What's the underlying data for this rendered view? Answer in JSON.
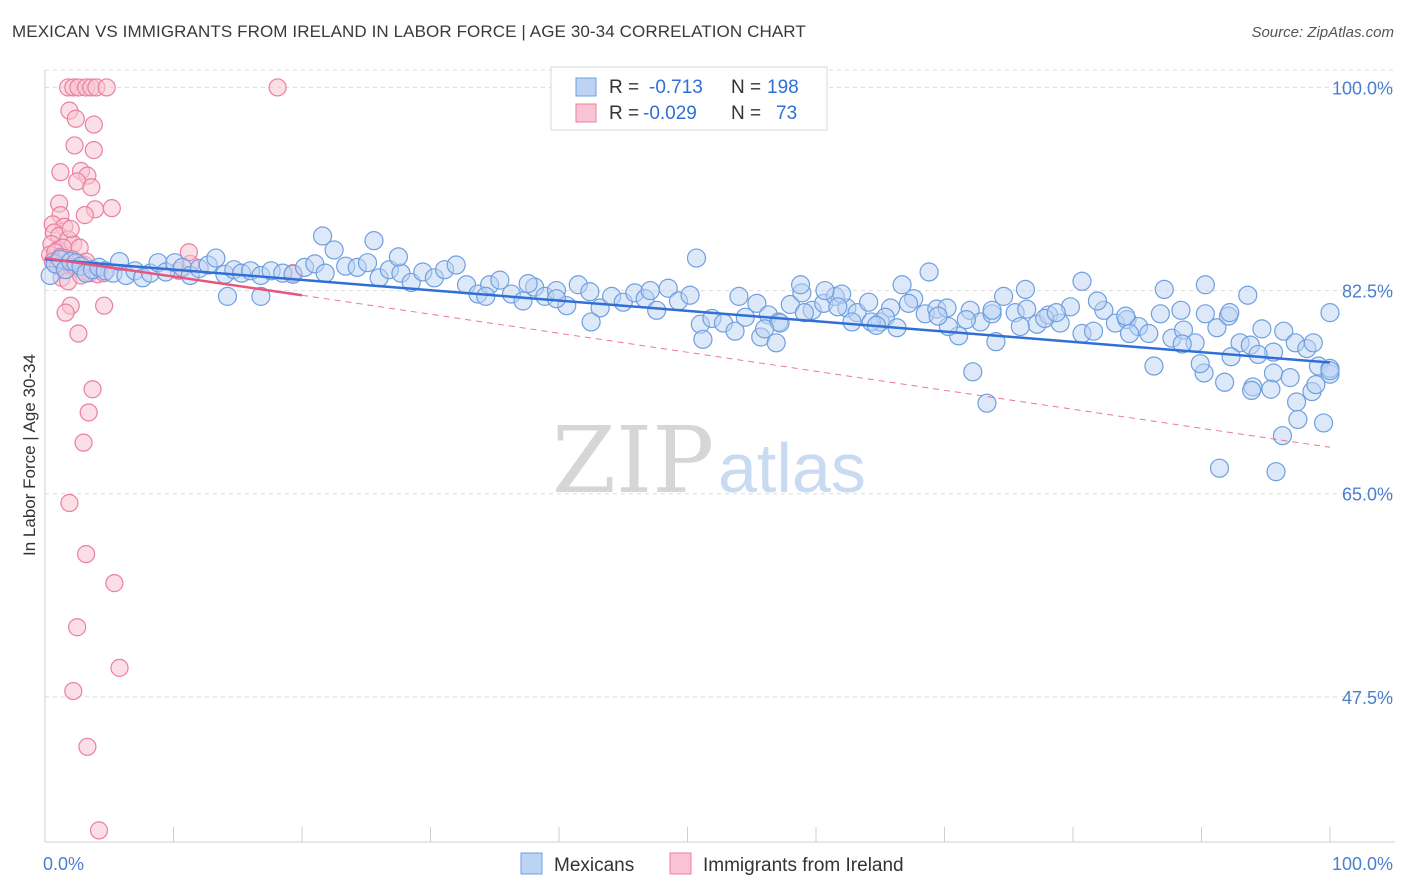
{
  "title": "MEXICAN VS IMMIGRANTS FROM IRELAND IN LABOR FORCE | AGE 30-34 CORRELATION CHART",
  "source": "Source: ZipAtlas.com",
  "watermark": {
    "zip": "ZIP",
    "atlas": "atlas"
  },
  "colors": {
    "blue_fill": "#bcd3f3",
    "blue_stroke": "#6f9fe0",
    "blue_line": "#2f6fd6",
    "pink_fill": "#f8c4d4",
    "pink_stroke": "#eb7fa2",
    "pink_line": "#e8557f",
    "grid": "#dcdcdc",
    "axis_text": "#4a7fd0"
  },
  "legend": {
    "row1": {
      "r_label": "R =",
      "r_value": "-0.713",
      "n_label": "N =",
      "n_value": "198"
    },
    "row2": {
      "r_label": "R =",
      "r_value": "-0.029",
      "n_label": "N =",
      "n_value": "73"
    }
  },
  "chart_data": {
    "type": "scatter",
    "title": "MEXICAN VS IMMIGRANTS FROM IRELAND IN LABOR FORCE | AGE 30-34 CORRELATION CHART",
    "xlabel": "",
    "ylabel": "In Labor Force | Age 30-34",
    "xlim": [
      0,
      100
    ],
    "ylim": [
      35,
      101.5
    ],
    "x_tick_labels": [
      "0.0%",
      "100.0%"
    ],
    "y_ticks": [
      47.5,
      65.0,
      82.5,
      100.0
    ],
    "y_tick_labels": [
      "47.5%",
      "65.0%",
      "82.5%",
      "100.0%"
    ],
    "grid": true,
    "legend_position": "top-center",
    "series": [
      {
        "name": "Mexicans",
        "r": -0.713,
        "n": 198,
        "trend": {
          "x": [
            0,
            100
          ],
          "y": [
            85.2,
            76.3
          ],
          "style": "solid"
        },
        "points": [
          [
            0.4,
            83.8
          ],
          [
            0.8,
            84.8
          ],
          [
            1.2,
            85.2
          ],
          [
            1.6,
            84.3
          ],
          [
            2.0,
            85.0
          ],
          [
            2.4,
            84.9
          ],
          [
            2.8,
            84.6
          ],
          [
            3.2,
            84.0
          ],
          [
            3.7,
            84.3
          ],
          [
            4.2,
            84.5
          ],
          [
            4.7,
            84.2
          ],
          [
            5.3,
            84.0
          ],
          [
            5.8,
            85.0
          ],
          [
            6.3,
            83.8
          ],
          [
            7.0,
            84.2
          ],
          [
            7.6,
            83.6
          ],
          [
            8.2,
            84.0
          ],
          [
            8.8,
            84.9
          ],
          [
            9.4,
            84.1
          ],
          [
            10.1,
            84.9
          ],
          [
            10.7,
            84.5
          ],
          [
            11.3,
            83.8
          ],
          [
            12.0,
            84.4
          ],
          [
            12.7,
            84.7
          ],
          [
            13.3,
            85.3
          ],
          [
            14.0,
            83.9
          ],
          [
            14.7,
            84.3
          ],
          [
            15.3,
            84.0
          ],
          [
            16.0,
            84.2
          ],
          [
            16.8,
            83.8
          ],
          [
            17.6,
            84.2
          ],
          [
            18.5,
            84.0
          ],
          [
            19.3,
            83.9
          ],
          [
            20.2,
            84.5
          ],
          [
            21.0,
            84.8
          ],
          [
            21.8,
            84.0
          ],
          [
            22.5,
            86.0
          ],
          [
            23.4,
            84.6
          ],
          [
            24.3,
            84.5
          ],
          [
            25.1,
            84.9
          ],
          [
            26.0,
            83.6
          ],
          [
            26.8,
            84.3
          ],
          [
            27.7,
            84.0
          ],
          [
            28.5,
            83.2
          ],
          [
            29.4,
            84.1
          ],
          [
            30.3,
            83.6
          ],
          [
            31.1,
            84.3
          ],
          [
            32.0,
            84.7
          ],
          [
            32.8,
            83.0
          ],
          [
            33.7,
            82.2
          ],
          [
            34.6,
            83.0
          ],
          [
            35.4,
            83.4
          ],
          [
            36.3,
            82.2
          ],
          [
            37.2,
            81.6
          ],
          [
            38.1,
            82.8
          ],
          [
            38.9,
            82.0
          ],
          [
            39.8,
            82.5
          ],
          [
            40.6,
            81.2
          ],
          [
            41.5,
            83.0
          ],
          [
            42.4,
            82.4
          ],
          [
            43.2,
            81.0
          ],
          [
            44.1,
            82.0
          ],
          [
            45.0,
            81.5
          ],
          [
            45.9,
            82.3
          ],
          [
            46.7,
            81.8
          ],
          [
            47.6,
            80.8
          ],
          [
            48.5,
            82.7
          ],
          [
            49.3,
            81.6
          ],
          [
            50.2,
            82.1
          ],
          [
            51.0,
            79.6
          ],
          [
            51.9,
            80.1
          ],
          [
            52.8,
            79.7
          ],
          [
            53.7,
            79.0
          ],
          [
            54.5,
            80.2
          ],
          [
            55.4,
            81.4
          ],
          [
            56.3,
            80.4
          ],
          [
            57.1,
            79.8
          ],
          [
            58.0,
            81.3
          ],
          [
            58.9,
            82.3
          ],
          [
            59.7,
            80.8
          ],
          [
            60.6,
            81.4
          ],
          [
            61.5,
            82.0
          ],
          [
            62.4,
            81.0
          ],
          [
            63.2,
            80.6
          ],
          [
            64.1,
            81.5
          ],
          [
            65.0,
            79.8
          ],
          [
            65.8,
            81.0
          ],
          [
            66.7,
            83.0
          ],
          [
            67.6,
            81.8
          ],
          [
            68.5,
            80.5
          ],
          [
            69.4,
            80.9
          ],
          [
            70.2,
            81.0
          ],
          [
            71.1,
            78.6
          ],
          [
            72.0,
            80.8
          ],
          [
            72.8,
            79.8
          ],
          [
            73.7,
            80.5
          ],
          [
            74.6,
            82.0
          ],
          [
            75.5,
            80.6
          ],
          [
            76.4,
            80.9
          ],
          [
            77.2,
            79.6
          ],
          [
            78.1,
            80.4
          ],
          [
            79.0,
            79.7
          ],
          [
            79.8,
            81.1
          ],
          [
            80.7,
            78.8
          ],
          [
            81.6,
            79.0
          ],
          [
            82.4,
            80.8
          ],
          [
            83.3,
            79.7
          ],
          [
            84.2,
            80.0
          ],
          [
            85.1,
            79.4
          ],
          [
            85.9,
            78.8
          ],
          [
            86.8,
            80.5
          ],
          [
            87.7,
            78.4
          ],
          [
            88.6,
            79.1
          ],
          [
            89.5,
            78.0
          ],
          [
            90.3,
            80.5
          ],
          [
            91.2,
            79.3
          ],
          [
            92.1,
            80.3
          ],
          [
            93.0,
            78.0
          ],
          [
            93.8,
            77.8
          ],
          [
            94.7,
            79.2
          ],
          [
            95.6,
            77.2
          ],
          [
            96.4,
            79.0
          ],
          [
            97.3,
            78.0
          ],
          [
            98.2,
            77.5
          ],
          [
            99.1,
            76.0
          ],
          [
            100.0,
            75.3
          ],
          [
            14.2,
            82.0
          ],
          [
            16.8,
            82.0
          ],
          [
            21.6,
            87.2
          ],
          [
            25.6,
            86.8
          ],
          [
            27.5,
            85.4
          ],
          [
            34.3,
            82.0
          ],
          [
            37.6,
            83.1
          ],
          [
            39.8,
            81.8
          ],
          [
            42.5,
            79.8
          ],
          [
            47.1,
            82.5
          ],
          [
            50.7,
            85.3
          ],
          [
            54.0,
            82.0
          ],
          [
            55.7,
            78.5
          ],
          [
            57.2,
            79.7
          ],
          [
            62.0,
            82.2
          ],
          [
            65.4,
            80.2
          ],
          [
            68.8,
            84.1
          ],
          [
            72.2,
            75.5
          ],
          [
            73.3,
            72.8
          ],
          [
            76.3,
            82.6
          ],
          [
            77.8,
            80.1
          ],
          [
            80.7,
            83.3
          ],
          [
            84.4,
            78.8
          ],
          [
            87.1,
            82.6
          ],
          [
            90.3,
            83.0
          ],
          [
            92.2,
            80.6
          ],
          [
            94.0,
            74.2
          ],
          [
            95.6,
            75.4
          ],
          [
            96.3,
            70.0
          ],
          [
            98.6,
            73.8
          ],
          [
            100.0,
            80.6
          ],
          [
            51.2,
            78.3
          ],
          [
            56.0,
            79.2
          ],
          [
            58.8,
            83.0
          ],
          [
            61.7,
            81.1
          ],
          [
            64.3,
            79.8
          ],
          [
            67.2,
            81.4
          ],
          [
            70.3,
            79.4
          ],
          [
            73.7,
            80.8
          ],
          [
            75.9,
            79.4
          ],
          [
            78.7,
            80.6
          ],
          [
            81.9,
            81.6
          ],
          [
            84.1,
            80.3
          ],
          [
            86.3,
            76.0
          ],
          [
            88.4,
            80.8
          ],
          [
            90.2,
            75.4
          ],
          [
            92.3,
            76.8
          ],
          [
            94.4,
            77.0
          ],
          [
            96.9,
            75.0
          ],
          [
            98.7,
            78.0
          ],
          [
            100.0,
            75.8
          ],
          [
            91.4,
            67.2
          ],
          [
            93.9,
            73.9
          ],
          [
            95.8,
            66.9
          ],
          [
            97.4,
            72.9
          ],
          [
            98.9,
            74.4
          ],
          [
            100.0,
            75.6
          ],
          [
            88.5,
            77.9
          ],
          [
            89.9,
            76.2
          ],
          [
            91.8,
            74.6
          ],
          [
            93.6,
            82.1
          ],
          [
            95.4,
            74.0
          ],
          [
            97.5,
            71.4
          ],
          [
            99.5,
            71.1
          ],
          [
            56.9,
            78.0
          ],
          [
            59.1,
            80.6
          ],
          [
            60.7,
            82.5
          ],
          [
            62.8,
            79.8
          ],
          [
            64.7,
            79.5
          ],
          [
            66.3,
            79.3
          ],
          [
            69.5,
            80.3
          ],
          [
            71.7,
            80.0
          ],
          [
            74.0,
            78.1
          ]
        ]
      },
      {
        "name": "Immigrants from Ireland",
        "r": -0.029,
        "n": 73,
        "trend": {
          "x": [
            0,
            20
          ],
          "y": [
            85.3,
            82.1
          ],
          "style": "solid"
        },
        "trend_extended": {
          "x": [
            20,
            100
          ],
          "y": [
            82.1,
            69.0
          ],
          "style": "dashed"
        },
        "points": [
          [
            1.8,
            100.0
          ],
          [
            2.2,
            100.0
          ],
          [
            2.6,
            100.0
          ],
          [
            3.2,
            100.0
          ],
          [
            3.6,
            100.0
          ],
          [
            4.0,
            100.0
          ],
          [
            4.8,
            100.0
          ],
          [
            1.9,
            98.0
          ],
          [
            2.4,
            97.3
          ],
          [
            3.8,
            96.8
          ],
          [
            2.3,
            95.0
          ],
          [
            3.8,
            94.6
          ],
          [
            1.2,
            92.7
          ],
          [
            2.8,
            92.8
          ],
          [
            3.3,
            92.4
          ],
          [
            2.5,
            91.9
          ],
          [
            3.6,
            91.4
          ],
          [
            1.1,
            90.0
          ],
          [
            3.9,
            89.5
          ],
          [
            5.2,
            89.6
          ],
          [
            1.2,
            89.0
          ],
          [
            3.1,
            89.0
          ],
          [
            0.6,
            88.2
          ],
          [
            1.5,
            88.0
          ],
          [
            0.7,
            87.5
          ],
          [
            1.1,
            87.2
          ],
          [
            1.8,
            86.9
          ],
          [
            2.2,
            86.5
          ],
          [
            0.5,
            86.5
          ],
          [
            1.0,
            86.0
          ],
          [
            1.4,
            86.2
          ],
          [
            2.7,
            86.2
          ],
          [
            0.4,
            85.6
          ],
          [
            0.8,
            85.8
          ],
          [
            1.2,
            85.4
          ],
          [
            1.6,
            85.3
          ],
          [
            2.1,
            85.2
          ],
          [
            2.6,
            84.9
          ],
          [
            3.1,
            84.7
          ],
          [
            0.6,
            85.0
          ],
          [
            1.0,
            84.6
          ],
          [
            1.5,
            84.3
          ],
          [
            2.0,
            84.6
          ],
          [
            2.4,
            84.5
          ],
          [
            3.0,
            84.2
          ],
          [
            3.5,
            84.0
          ],
          [
            4.1,
            83.9
          ],
          [
            1.3,
            83.6
          ],
          [
            1.8,
            83.3
          ],
          [
            2.8,
            83.8
          ],
          [
            4.6,
            84.0
          ],
          [
            10.4,
            84.2
          ],
          [
            11.3,
            84.8
          ],
          [
            11.2,
            85.8
          ],
          [
            19.3,
            84.0
          ],
          [
            18.1,
            100.0
          ],
          [
            2.0,
            81.2
          ],
          [
            4.6,
            81.2
          ],
          [
            1.6,
            80.6
          ],
          [
            2.6,
            78.8
          ],
          [
            3.7,
            74.0
          ],
          [
            3.4,
            72.0
          ],
          [
            3.0,
            69.4
          ],
          [
            1.9,
            64.2
          ],
          [
            3.2,
            59.8
          ],
          [
            5.4,
            57.3
          ],
          [
            2.5,
            53.5
          ],
          [
            5.8,
            50.0
          ],
          [
            2.2,
            48.0
          ],
          [
            3.3,
            43.2
          ],
          [
            4.2,
            36.0
          ],
          [
            2.0,
            87.8
          ],
          [
            3.2,
            85.0
          ]
        ]
      }
    ]
  },
  "bottom_legend": [
    "Mexicans",
    "Immigrants from Ireland"
  ]
}
